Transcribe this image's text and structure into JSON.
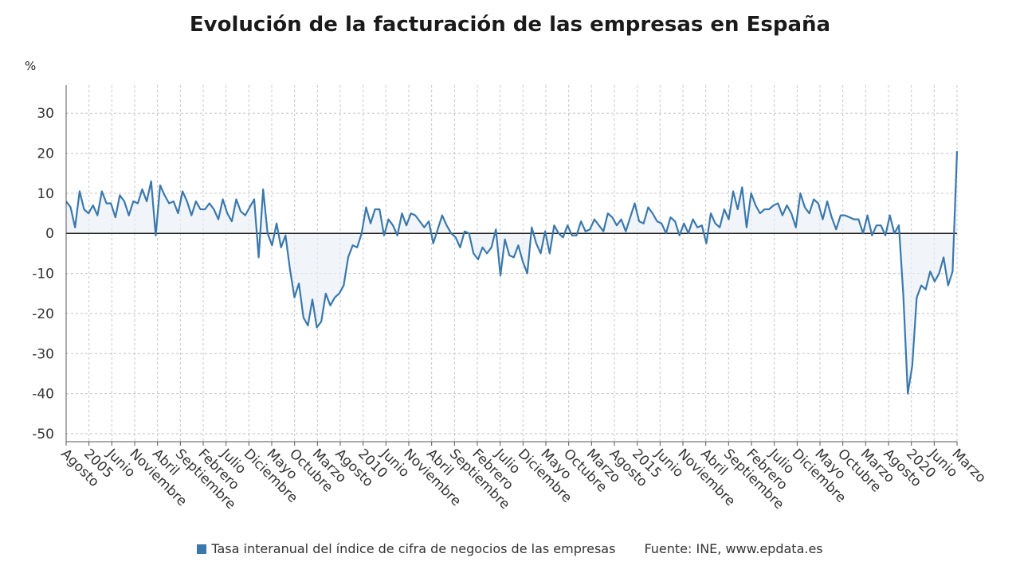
{
  "title": "Evolución de la facturación de las empresas en España",
  "unit_label": "%",
  "legend": {
    "label": "Tasa interanual del índice de cifra de negocios de las empresas",
    "color": "#3a78ac"
  },
  "source": "Fuente: INE, www.epdata.es",
  "chart_data": {
    "type": "area",
    "title": "Evolución de la facturación de las empresas en España",
    "xlabel": "",
    "ylabel": "%",
    "ylim": [
      -52,
      37
    ],
    "yticks": [
      30,
      20,
      10,
      0,
      -10,
      -20,
      -30,
      -40,
      -50
    ],
    "grid": true,
    "legend_position": "bottom",
    "x_start": "2002-08",
    "x_end": "2021-03",
    "x_tick_labels": [
      "Agosto",
      "2005",
      "Junio",
      "Noviembre",
      "Abril",
      "Septiembre",
      "Febrero",
      "Julio",
      "Diciembre",
      "Mayo",
      "Octubre",
      "Marzo",
      "Agosto",
      "2010",
      "Junio",
      "Noviembre",
      "Abril",
      "Septiembre",
      "Febrero",
      "Julio",
      "Diciembre",
      "Mayo",
      "Octubre",
      "Marzo",
      "Agosto",
      "2015",
      "Junio",
      "Noviembre",
      "Abril",
      "Septiembre",
      "Febrero",
      "Julio",
      "Diciembre",
      "Mayo",
      "Octubre",
      "Marzo",
      "Agosto",
      "2020",
      "Junio",
      "Marzo"
    ],
    "series": [
      {
        "name": "Tasa interanual del índice de cifra de negocios de las empresas",
        "color": "#3a78ac",
        "values": [
          8,
          6.5,
          1.5,
          10.5,
          6,
          5,
          7,
          4.5,
          10.5,
          7.5,
          7.5,
          4,
          9.5,
          8,
          4.5,
          8,
          7.5,
          11,
          8,
          13,
          -0.5,
          12,
          9.5,
          7.5,
          8,
          5,
          10.5,
          8,
          4.5,
          8,
          6,
          6,
          7.5,
          6,
          3.5,
          8.5,
          5,
          3,
          8.5,
          5.5,
          4.5,
          6.5,
          8.5,
          -6,
          11,
          0,
          -3,
          2.5,
          -3.5,
          -0.5,
          -9,
          -16,
          -12.5,
          -21,
          -23,
          -16.5,
          -23.5,
          -22,
          -15,
          -18,
          -16,
          -15,
          -13,
          -6,
          -3,
          -3.5,
          0,
          6.5,
          2.5,
          6,
          6,
          -0.5,
          3.5,
          2,
          -0.5,
          5,
          2,
          5,
          4.5,
          3,
          1.5,
          3,
          -2.5,
          1,
          4.5,
          2,
          0,
          -1,
          -3.5,
          0.5,
          0,
          -5,
          -6.5,
          -3.5,
          -5,
          -3.5,
          1,
          -10.5,
          -1.5,
          -5.5,
          -6,
          -3,
          -7,
          -10,
          1.5,
          -2.5,
          -5,
          0.5,
          -5,
          2,
          0,
          -1,
          2,
          -0.5,
          -0.5,
          3,
          0.5,
          1,
          3.5,
          2,
          0.5,
          5,
          4,
          2,
          3.5,
          0.5,
          4,
          7.5,
          3,
          2.5,
          6.5,
          5,
          3,
          2.5,
          0,
          4,
          3,
          -0.5,
          2.5,
          0,
          3.5,
          1.5,
          2,
          -2.5,
          5,
          2.5,
          1.5,
          6,
          3.5,
          10.5,
          6,
          11.5,
          1.5,
          10,
          7,
          5,
          6,
          6,
          7,
          7.5,
          4.5,
          7,
          5,
          1.5,
          10,
          6.5,
          5,
          8.5,
          7.5,
          3.5,
          8,
          4,
          1,
          4.5,
          4.5,
          4,
          3.5,
          3.5,
          0,
          4.5,
          -0.5,
          2,
          2,
          -0.5,
          4.5,
          0,
          2,
          -15.5,
          -40,
          -33,
          -16,
          -13,
          -14,
          -9.5,
          -12,
          -10,
          -6,
          -13,
          -9.5,
          20.5
        ]
      }
    ]
  }
}
